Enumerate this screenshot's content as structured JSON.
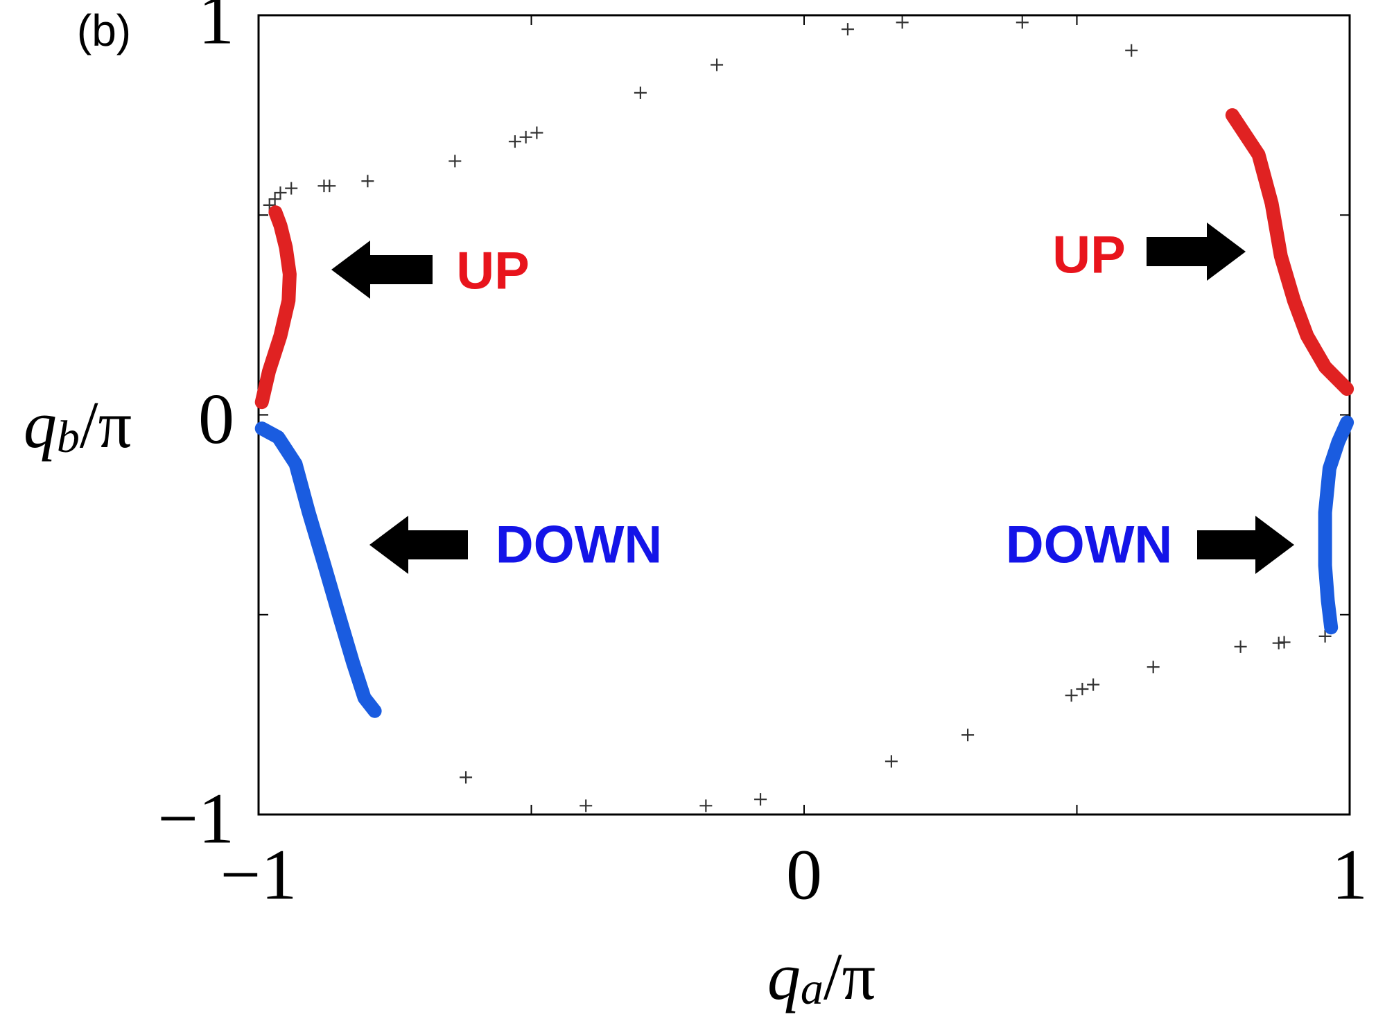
{
  "chart_data": {
    "type": "scatter",
    "panel_label": "(b)",
    "xlabel": [
      "q",
      "a",
      "/π"
    ],
    "ylabel": [
      "q",
      "b",
      "/π"
    ],
    "xlim": [
      -1,
      1
    ],
    "ylim": [
      -1,
      1
    ],
    "xticks": [
      {
        "value": -1,
        "label": "−1"
      },
      0,
      1
    ],
    "yticks": [
      {
        "value": -1,
        "label": "−1"
      },
      0,
      1
    ],
    "minor_xticks": [
      -0.5,
      0.5
    ],
    "minor_yticks": [
      -0.5,
      0.5
    ],
    "points": {
      "marker": "+",
      "color": "#333333",
      "x": [
        0.08,
        0.18,
        0.4,
        0.6,
        -0.16,
        -0.3,
        -0.49,
        -0.51,
        -0.53,
        -0.64,
        -0.8,
        -0.87,
        -0.88,
        -0.94,
        -0.96,
        -0.97,
        -0.98,
        0.955,
        0.88,
        0.87,
        0.8,
        0.64,
        0.53,
        0.51,
        0.49,
        0.3,
        0.16,
        -0.08,
        -0.18,
        -0.4,
        -0.62
      ],
      "y": [
        0.965,
        0.982,
        0.982,
        0.912,
        0.876,
        0.806,
        0.706,
        0.695,
        0.684,
        0.635,
        0.585,
        0.573,
        0.573,
        0.567,
        0.556,
        0.54,
        0.525,
        -0.554,
        -0.569,
        -0.571,
        -0.58,
        -0.631,
        -0.675,
        -0.686,
        -0.702,
        -0.801,
        -0.867,
        -0.962,
        -0.978,
        -0.978,
        -0.907
      ]
    },
    "curves": [
      {
        "color": "#e02222",
        "x": [
          -0.994,
          -0.981,
          -0.96,
          -0.945,
          -0.943,
          -0.95,
          -0.96,
          -0.969
        ],
        "y": [
          0.032,
          0.109,
          0.198,
          0.286,
          0.352,
          0.419,
          0.474,
          0.507
        ]
      },
      {
        "color": "#e02222",
        "x": [
          0.785,
          0.833,
          0.857,
          0.874,
          0.898,
          0.922,
          0.955,
          0.995
        ],
        "y": [
          0.75,
          0.651,
          0.529,
          0.397,
          0.286,
          0.198,
          0.12,
          0.065
        ]
      },
      {
        "color": "#1a5ce0",
        "x": [
          -0.994,
          -0.964,
          -0.932,
          -0.908,
          -0.879,
          -0.851,
          -0.827,
          -0.806,
          -0.787
        ],
        "y": [
          -0.034,
          -0.056,
          -0.123,
          -0.244,
          -0.377,
          -0.509,
          -0.62,
          -0.708,
          -0.741
        ]
      },
      {
        "color": "#1a5ce0",
        "x": [
          0.995,
          0.979,
          0.963,
          0.955,
          0.955,
          0.96,
          0.966
        ],
        "y": [
          -0.019,
          -0.068,
          -0.134,
          -0.244,
          -0.377,
          -0.465,
          -0.532
        ]
      }
    ],
    "annotations": [
      {
        "text": "UP",
        "color": "#e8141c"
      },
      {
        "text": "UP",
        "color": "#e8141c"
      },
      {
        "text": "DOWN",
        "color": "#1414e8"
      },
      {
        "text": "DOWN",
        "color": "#1414e8"
      }
    ]
  }
}
